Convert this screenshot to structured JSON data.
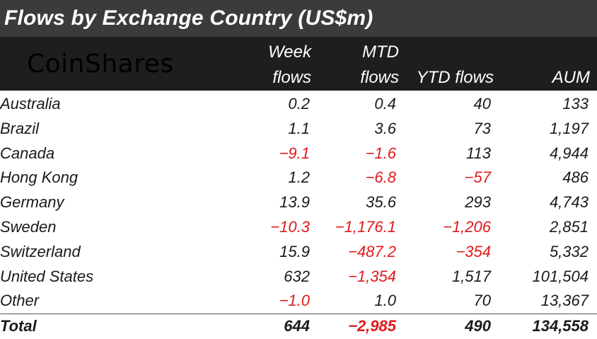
{
  "title": "Flows by Exchange Country (US$m)",
  "logo_text": "CoinShares",
  "columns": {
    "week_line1": "Week",
    "week_line2": "flows",
    "mtd_line1": "MTD",
    "mtd_line2": "flows",
    "ytd": "YTD flows",
    "aum": "AUM"
  },
  "colors": {
    "header_dark": "#1e1e1e",
    "title_bg": "#3b3b3b",
    "negative": "#e0191b"
  },
  "chart_data": {
    "type": "table",
    "title": "Flows by Exchange Country (US$m)",
    "columns": [
      "Week flows",
      "MTD flows",
      "YTD flows",
      "AUM"
    ],
    "rows": [
      {
        "country": "Australia",
        "week": "0.2",
        "mtd": "0.4",
        "ytd": "40",
        "aum": "133"
      },
      {
        "country": "Brazil",
        "week": "1.1",
        "mtd": "3.6",
        "ytd": "73",
        "aum": "1,197"
      },
      {
        "country": "Canada",
        "week": "-9.1",
        "mtd": "-1.6",
        "ytd": "113",
        "aum": "4,944"
      },
      {
        "country": "Hong Kong",
        "week": "1.2",
        "mtd": "-6.8",
        "ytd": "-57",
        "aum": "486"
      },
      {
        "country": "Germany",
        "week": "13.9",
        "mtd": "35.6",
        "ytd": "293",
        "aum": "4,743"
      },
      {
        "country": "Sweden",
        "week": "-10.3",
        "mtd": "-1,176.1",
        "ytd": "-1,206",
        "aum": "2,851"
      },
      {
        "country": "Switzerland",
        "week": "15.9",
        "mtd": "-487.2",
        "ytd": "-354",
        "aum": "5,332"
      },
      {
        "country": "United States",
        "week": "632",
        "mtd": "-1,354",
        "ytd": "1,517",
        "aum": "101,504"
      },
      {
        "country": "Other",
        "week": "-1.0",
        "mtd": "1.0",
        "ytd": "70",
        "aum": "13,367"
      }
    ],
    "total": {
      "country": "Total",
      "week": "644",
      "mtd": "-2,985",
      "ytd": "490",
      "aum": "134,558"
    }
  }
}
